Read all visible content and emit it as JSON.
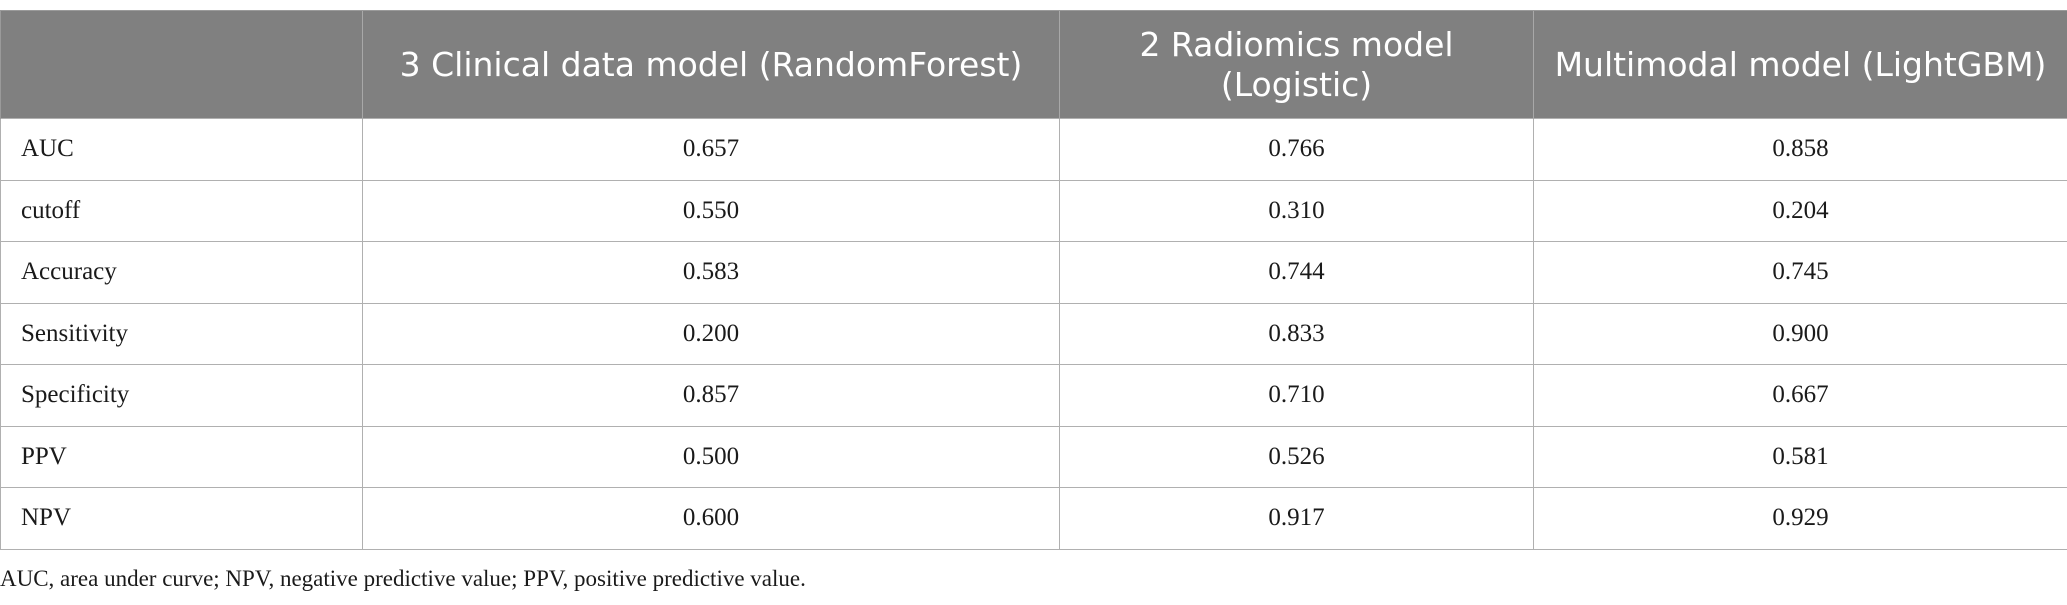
{
  "table": {
    "columns": [
      "",
      "3 Clinical data model (RandomForest)",
      "2 Radiomics model (Logistic)",
      "Multimodal model (LightGBM)"
    ],
    "rows": [
      {
        "metric": "AUC",
        "values": [
          "0.657",
          "0.766",
          "0.858"
        ]
      },
      {
        "metric": "cutoff",
        "values": [
          "0.550",
          "0.310",
          "0.204"
        ]
      },
      {
        "metric": "Accuracy",
        "values": [
          "0.583",
          "0.744",
          "0.745"
        ]
      },
      {
        "metric": "Sensitivity",
        "values": [
          "0.200",
          "0.833",
          "0.900"
        ]
      },
      {
        "metric": "Specificity",
        "values": [
          "0.857",
          "0.710",
          "0.667"
        ]
      },
      {
        "metric": "PPV",
        "values": [
          "0.500",
          "0.526",
          "0.581"
        ]
      },
      {
        "metric": "NPV",
        "values": [
          "0.600",
          "0.917",
          "0.929"
        ]
      }
    ],
    "header_color": "#808080"
  },
  "footnote": "AUC, area under curve; NPV, negative predictive value; PPV, positive predictive value."
}
